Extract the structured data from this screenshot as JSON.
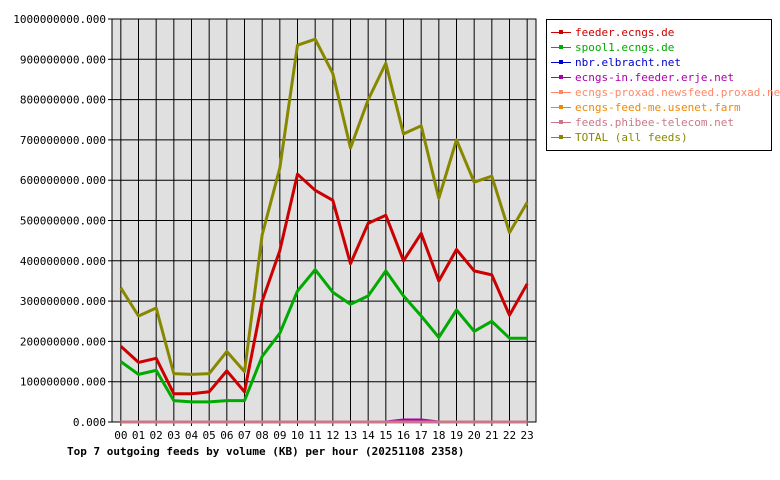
{
  "chart_data": {
    "type": "line",
    "title": "Top 7 outgoing feeds by volume (KB) per hour (20251108 2358)",
    "xlabel": "",
    "ylabel": "",
    "ylim": [
      0,
      1000000000
    ],
    "yticks": [
      "0.000",
      "100000000.000",
      "200000000.000",
      "300000000.000",
      "400000000.000",
      "500000000.000",
      "600000000.000",
      "700000000.000",
      "800000000.000",
      "900000000.000",
      "1000000000.000"
    ],
    "categories": [
      "00",
      "01",
      "02",
      "03",
      "04",
      "05",
      "06",
      "07",
      "08",
      "09",
      "10",
      "11",
      "12",
      "13",
      "14",
      "15",
      "16",
      "17",
      "18",
      "19",
      "20",
      "21",
      "22",
      "23"
    ],
    "grid": true,
    "legend_placement": "right",
    "series": [
      {
        "name": "feeder.ecngs.de",
        "color": "#cc0000",
        "values": [
          188000000,
          148000000,
          158000000,
          70000000,
          70000000,
          75000000,
          127000000,
          75000000,
          300000000,
          425000000,
          615000000,
          575000000,
          550000000,
          393000000,
          493000000,
          513000000,
          400000000,
          468000000,
          350000000,
          428000000,
          375000000,
          365000000,
          265000000,
          343000000
        ]
      },
      {
        "name": "spool1.ecngs.de",
        "color": "#00aa00",
        "values": [
          150000000,
          118000000,
          128000000,
          53000000,
          50000000,
          50000000,
          53000000,
          53000000,
          163000000,
          220000000,
          325000000,
          378000000,
          322000000,
          292000000,
          313000000,
          375000000,
          313000000,
          263000000,
          210000000,
          278000000,
          225000000,
          250000000,
          208000000,
          208000000
        ]
      },
      {
        "name": "nbr.elbracht.net",
        "color": "#0000cc",
        "values": [
          0,
          0,
          0,
          0,
          0,
          0,
          0,
          0,
          0,
          0,
          0,
          0,
          0,
          0,
          0,
          0,
          0,
          0,
          0,
          0,
          0,
          0,
          0,
          0
        ]
      },
      {
        "name": "ecngs-in.feeder.erje.net",
        "color": "#aa00aa",
        "values": [
          0,
          0,
          0,
          0,
          0,
          0,
          0,
          0,
          0,
          0,
          0,
          0,
          0,
          0,
          0,
          0,
          5000000,
          5000000,
          0,
          0,
          0,
          0,
          0,
          0
        ]
      },
      {
        "name": "ecngs-proxad.newsfeed.proxad.net",
        "color": "#ff8866",
        "values": [
          0,
          0,
          0,
          0,
          0,
          0,
          0,
          0,
          0,
          0,
          0,
          0,
          0,
          0,
          0,
          0,
          0,
          0,
          0,
          0,
          0,
          0,
          0,
          0
        ]
      },
      {
        "name": "ecngs-feed-me.usenet.farm",
        "color": "#ee8800",
        "values": [
          0,
          0,
          0,
          0,
          0,
          0,
          0,
          0,
          0,
          0,
          0,
          0,
          0,
          0,
          0,
          0,
          0,
          0,
          0,
          0,
          0,
          0,
          0,
          0
        ]
      },
      {
        "name": "feeds.phibee-telecom.net",
        "color": "#cc7788",
        "values": [
          0,
          0,
          0,
          0,
          0,
          0,
          0,
          0,
          0,
          0,
          0,
          0,
          0,
          0,
          0,
          0,
          0,
          0,
          0,
          0,
          0,
          0,
          0,
          0
        ]
      },
      {
        "name": "TOTAL (all feeds)",
        "color": "#888800",
        "values": [
          333000000,
          263000000,
          283000000,
          120000000,
          118000000,
          120000000,
          175000000,
          125000000,
          465000000,
          630000000,
          935000000,
          950000000,
          865000000,
          680000000,
          800000000,
          890000000,
          715000000,
          735000000,
          555000000,
          700000000,
          595000000,
          610000000,
          470000000,
          545000000
        ]
      }
    ]
  }
}
